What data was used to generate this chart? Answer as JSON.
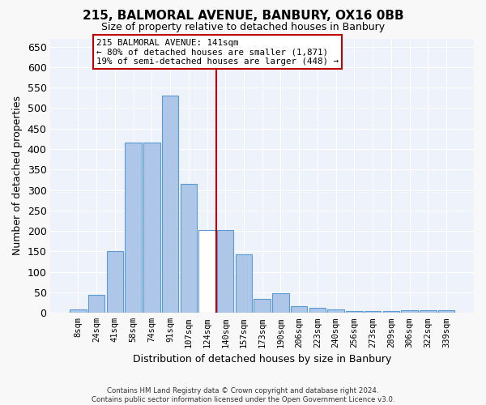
{
  "title": "215, BALMORAL AVENUE, BANBURY, OX16 0BB",
  "subtitle": "Size of property relative to detached houses in Banbury",
  "xlabel": "Distribution of detached houses by size in Banbury",
  "ylabel": "Number of detached properties",
  "categories": [
    "8sqm",
    "24sqm",
    "41sqm",
    "58sqm",
    "74sqm",
    "91sqm",
    "107sqm",
    "124sqm",
    "140sqm",
    "157sqm",
    "173sqm",
    "190sqm",
    "206sqm",
    "223sqm",
    "240sqm",
    "256sqm",
    "273sqm",
    "289sqm",
    "306sqm",
    "322sqm",
    "339sqm"
  ],
  "values": [
    8,
    45,
    150,
    415,
    415,
    530,
    315,
    203,
    203,
    143,
    35,
    48,
    16,
    13,
    8,
    5,
    5,
    5,
    7,
    7,
    7
  ],
  "bar_color": "#aec6e8",
  "bar_edge_color": "#5b9bd5",
  "highlight_bar_index": 7,
  "highlight_color": "#ffffff",
  "vline_color": "#c00000",
  "ylim": [
    0,
    670
  ],
  "yticks": [
    0,
    50,
    100,
    150,
    200,
    250,
    300,
    350,
    400,
    450,
    500,
    550,
    600,
    650
  ],
  "annotation_text": "215 BALMORAL AVENUE: 141sqm\n← 80% of detached houses are smaller (1,871)\n19% of semi-detached houses are larger (448) →",
  "annotation_box_color": "#ffffff",
  "annotation_box_edge_color": "#c00000",
  "bg_color": "#eef3fb",
  "grid_color": "#ffffff",
  "footer_line1": "Contains HM Land Registry data © Crown copyright and database right 2024.",
  "footer_line2": "Contains public sector information licensed under the Open Government Licence v3.0."
}
